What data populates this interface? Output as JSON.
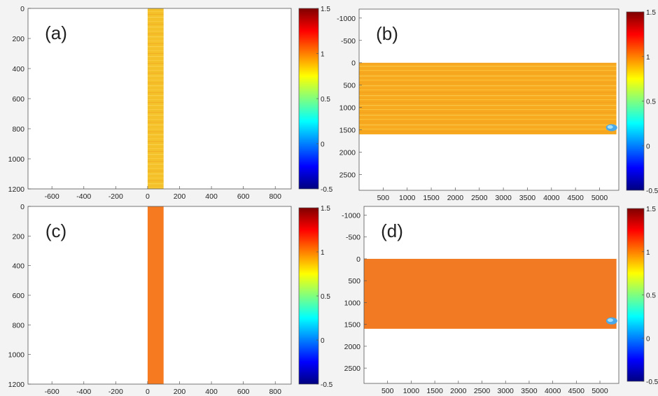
{
  "colormap": {
    "stops": [
      "#00007f",
      "#0000ff",
      "#007fff",
      "#00ffff",
      "#7fff7f",
      "#ffff00",
      "#ff7f00",
      "#ff0000",
      "#7f0000"
    ]
  },
  "chart_data": [
    {
      "id": "a",
      "type": "heatmap",
      "label": "(a)",
      "xlim": [
        -750,
        900
      ],
      "ylim": [
        0,
        1200
      ],
      "y_reversed": true,
      "xticks": [
        -600,
        -400,
        -200,
        0,
        200,
        400,
        600,
        800
      ],
      "yticks": [
        0,
        200,
        400,
        600,
        800,
        1000,
        1200
      ],
      "clim": [
        -0.5,
        1.5
      ],
      "cticks": [
        -0.5,
        0,
        0.5,
        1,
        1.5
      ],
      "filled_region": {
        "x": [
          0,
          100
        ],
        "y": [
          0,
          1200
        ],
        "value": 0.85,
        "color": "#f4c12a",
        "striped": true
      },
      "anomaly": null
    },
    {
      "id": "b",
      "type": "heatmap",
      "label": "(b)",
      "xlim": [
        0,
        5400
      ],
      "ylim": [
        -1200,
        2850
      ],
      "y_reversed": true,
      "xticks": [
        500,
        1000,
        1500,
        2000,
        2500,
        3000,
        3500,
        4000,
        4500,
        5000
      ],
      "yticks": [
        -1000,
        -500,
        0,
        500,
        1000,
        1500,
        2000,
        2500
      ],
      "clim": [
        -0.5,
        1.5
      ],
      "cticks": [
        -0.5,
        0,
        0.5,
        1,
        1.5
      ],
      "filled_region": {
        "x": [
          0,
          5350
        ],
        "y": [
          0,
          1600
        ],
        "value": 0.95,
        "color": "#f7aa20",
        "striped": true
      },
      "anomaly": {
        "x": 5250,
        "y": 1450,
        "value": 0.3
      }
    },
    {
      "id": "c",
      "type": "heatmap",
      "label": "(c)",
      "xlim": [
        -750,
        900
      ],
      "ylim": [
        0,
        1200
      ],
      "y_reversed": true,
      "xticks": [
        -600,
        -400,
        -200,
        0,
        200,
        400,
        600,
        800
      ],
      "yticks": [
        0,
        200,
        400,
        600,
        800,
        1000,
        1200
      ],
      "clim": [
        -0.5,
        1.5
      ],
      "cticks": [
        -0.5,
        0,
        0.5,
        1,
        1.5
      ],
      "filled_region": {
        "x": [
          0,
          100
        ],
        "y": [
          0,
          1200
        ],
        "value": 1.1,
        "color": "#f57a20",
        "striped": false
      },
      "anomaly": null
    },
    {
      "id": "d",
      "type": "heatmap",
      "label": "(d)",
      "xlim": [
        0,
        5400
      ],
      "ylim": [
        -1200,
        2850
      ],
      "y_reversed": true,
      "xticks": [
        500,
        1000,
        1500,
        2000,
        2500,
        3000,
        3500,
        4000,
        4500,
        5000
      ],
      "yticks": [
        -1000,
        -500,
        0,
        500,
        1000,
        1500,
        2000,
        2500
      ],
      "clim": [
        -0.5,
        1.5
      ],
      "cticks": [
        -0.5,
        0,
        0.5,
        1,
        1.5
      ],
      "filled_region": {
        "x": [
          0,
          5350
        ],
        "y": [
          0,
          1600
        ],
        "value": 1.1,
        "color": "#f27a22",
        "striped": false
      },
      "anomaly": {
        "x": 5250,
        "y": 1420,
        "value": 0.3
      }
    }
  ]
}
